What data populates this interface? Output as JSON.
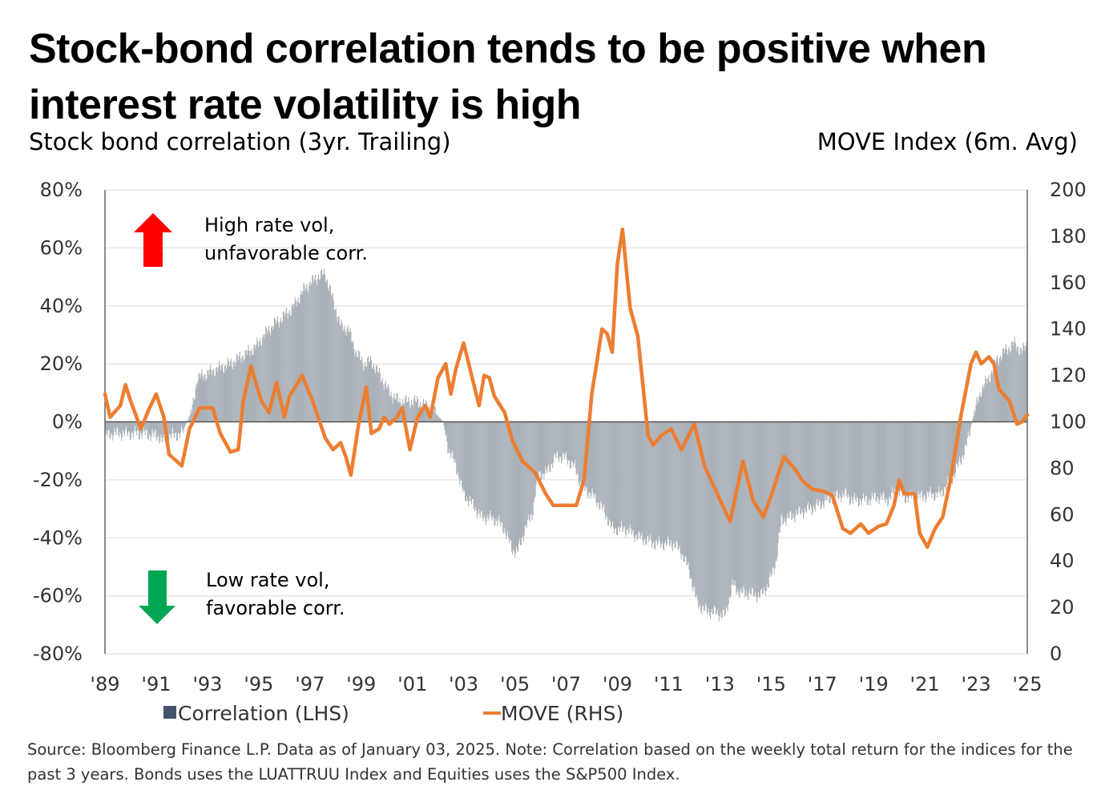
{
  "title_line1": "Stock-bond correlation tends to be positive when",
  "title_line2": "interest rate volatility is high",
  "subtitle_left": "Stock bond correlation (3yr. Trailing)",
  "subtitle_right": "MOVE Index (6m. Avg)",
  "annotations": {
    "high_line1": "High rate vol,",
    "high_line2": "unfavorable corr.",
    "low_line1": "Low rate vol,",
    "low_line2": "favorable corr.",
    "up_arrow_icon": "up-arrow",
    "down_arrow_icon": "down-arrow",
    "up_color": "#ff0000",
    "down_color": "#00a651"
  },
  "source": "Source: Bloomberg Finance L.P. Data as of January 03, 2025. Note: Correlation based on the weekly total return for the indices for the past 3 years. Bonds uses the LUATTRUU Index and Equities uses the S&P500 Index.",
  "chart_data": {
    "type": "bar+line",
    "title": "Stock-bond correlation tends to be positive when interest rate volatility is high",
    "xlabel": "",
    "ylabel_left": "Stock bond correlation (3yr. Trailing)",
    "ylabel_right": "MOVE Index (6m. Avg)",
    "xlim": [
      1989,
      2025
    ],
    "ylim_left": [
      -80,
      80
    ],
    "ylim_right": [
      0,
      200
    ],
    "grid": true,
    "legend_position": "bottom",
    "x_ticks": [
      "'89",
      "'91",
      "'93",
      "'95",
      "'97",
      "'99",
      "'01",
      "'03",
      "'05",
      "'07",
      "'09",
      "'11",
      "'13",
      "'15",
      "'17",
      "'19",
      "'21",
      "'23",
      "'25"
    ],
    "y_ticks_left": [
      "80%",
      "60%",
      "40%",
      "20%",
      "0%",
      "-20%",
      "-40%",
      "-60%",
      "-80%"
    ],
    "y_ticks_right": [
      "200",
      "180",
      "160",
      "140",
      "120",
      "100",
      "80",
      "60",
      "40",
      "20",
      "0"
    ],
    "series": [
      {
        "name": "Correlation (LHS)",
        "type": "bar",
        "axis": "left",
        "color": "#44546a",
        "bar_color": "#a9b1b8",
        "unit": "%",
        "points": [
          [
            1989.0,
            -5
          ],
          [
            1989.3,
            -4
          ],
          [
            1989.9,
            -4
          ],
          [
            1990.5,
            -4
          ],
          [
            1991.1,
            -5
          ],
          [
            1991.3,
            -7
          ],
          [
            1991.5,
            -5
          ],
          [
            1992.0,
            -4
          ],
          [
            1992.4,
            4
          ],
          [
            1992.6,
            15
          ],
          [
            1993.3,
            18
          ],
          [
            1993.9,
            20
          ],
          [
            1994.6,
            24
          ],
          [
            1994.9,
            26
          ],
          [
            1995.4,
            32
          ],
          [
            1995.8,
            35
          ],
          [
            1996.3,
            39
          ],
          [
            1996.8,
            46
          ],
          [
            1997.3,
            50
          ],
          [
            1997.6,
            51
          ],
          [
            1997.9,
            42
          ],
          [
            1998.2,
            33
          ],
          [
            1998.5,
            32
          ],
          [
            1998.8,
            24
          ],
          [
            1999.1,
            20
          ],
          [
            1999.4,
            21
          ],
          [
            1999.8,
            15
          ],
          [
            2000.1,
            10
          ],
          [
            2000.5,
            7
          ],
          [
            2001.2,
            7
          ],
          [
            2001.8,
            4
          ],
          [
            2002.0,
            2
          ],
          [
            2002.2,
            0
          ],
          [
            2002.4,
            -9
          ],
          [
            2002.7,
            -15
          ],
          [
            2003.0,
            -25
          ],
          [
            2003.4,
            -29
          ],
          [
            2003.7,
            -33
          ],
          [
            2004.0,
            -33
          ],
          [
            2004.3,
            -34
          ],
          [
            2004.6,
            -37
          ],
          [
            2004.9,
            -44
          ],
          [
            2005.1,
            -45
          ],
          [
            2005.4,
            -37
          ],
          [
            2005.7,
            -31
          ],
          [
            2005.9,
            -18
          ],
          [
            2006.2,
            -18
          ],
          [
            2006.6,
            -12
          ],
          [
            2006.9,
            -12
          ],
          [
            2007.3,
            -15
          ],
          [
            2007.6,
            -22
          ],
          [
            2008.1,
            -26
          ],
          [
            2008.5,
            -31
          ],
          [
            2008.8,
            -37
          ],
          [
            2009.3,
            -37
          ],
          [
            2009.9,
            -40
          ],
          [
            2010.5,
            -42
          ],
          [
            2011.2,
            -42
          ],
          [
            2011.5,
            -45
          ],
          [
            2011.8,
            -51
          ],
          [
            2012.1,
            -62
          ],
          [
            2012.4,
            -65
          ],
          [
            2012.9,
            -66
          ],
          [
            2013.2,
            -67
          ],
          [
            2013.5,
            -56
          ],
          [
            2013.8,
            -59
          ],
          [
            2014.1,
            -59
          ],
          [
            2014.6,
            -60
          ],
          [
            2014.9,
            -56
          ],
          [
            2015.2,
            -48
          ],
          [
            2015.4,
            -34
          ],
          [
            2015.7,
            -33
          ],
          [
            2016.2,
            -31
          ],
          [
            2016.8,
            -29
          ],
          [
            2017.4,
            -26
          ],
          [
            2017.9,
            -25
          ],
          [
            2018.2,
            -27
          ],
          [
            2018.7,
            -27
          ],
          [
            2019.2,
            -26
          ],
          [
            2019.6,
            -27
          ],
          [
            2019.9,
            -23
          ],
          [
            2020.2,
            -26
          ],
          [
            2020.7,
            -26
          ],
          [
            2021.2,
            -25
          ],
          [
            2021.6,
            -25
          ],
          [
            2022.1,
            -19
          ],
          [
            2022.6,
            -9
          ],
          [
            2022.9,
            2
          ],
          [
            2023.2,
            11
          ],
          [
            2023.5,
            15
          ],
          [
            2023.8,
            21
          ],
          [
            2024.2,
            25
          ],
          [
            2024.5,
            27
          ],
          [
            2024.8,
            24
          ],
          [
            2025.0,
            27
          ]
        ]
      },
      {
        "name": "MOVE (RHS)",
        "type": "line",
        "axis": "right",
        "color": "#ed7d31",
        "points": [
          [
            1989.0,
            112
          ],
          [
            1989.2,
            102
          ],
          [
            1989.6,
            107
          ],
          [
            1989.8,
            116
          ],
          [
            1990.0,
            109
          ],
          [
            1990.4,
            97
          ],
          [
            1990.7,
            105
          ],
          [
            1991.0,
            112
          ],
          [
            1991.3,
            102
          ],
          [
            1991.5,
            86
          ],
          [
            1992.0,
            81
          ],
          [
            1992.3,
            97
          ],
          [
            1992.7,
            106
          ],
          [
            1993.2,
            106
          ],
          [
            1993.5,
            95
          ],
          [
            1993.9,
            87
          ],
          [
            1994.2,
            88
          ],
          [
            1994.4,
            109
          ],
          [
            1994.7,
            124
          ],
          [
            1995.1,
            109
          ],
          [
            1995.4,
            104
          ],
          [
            1995.7,
            117
          ],
          [
            1996.0,
            102
          ],
          [
            1996.2,
            111
          ],
          [
            1996.7,
            120
          ],
          [
            1997.1,
            109
          ],
          [
            1997.6,
            93
          ],
          [
            1997.9,
            88
          ],
          [
            1998.2,
            91
          ],
          [
            1998.4,
            85
          ],
          [
            1998.6,
            77
          ],
          [
            1998.9,
            99
          ],
          [
            1999.2,
            115
          ],
          [
            1999.4,
            95
          ],
          [
            1999.7,
            97
          ],
          [
            1999.9,
            102
          ],
          [
            2000.1,
            99
          ],
          [
            2000.4,
            102
          ],
          [
            2000.6,
            106
          ],
          [
            2000.9,
            88
          ],
          [
            2001.2,
            102
          ],
          [
            2001.5,
            107
          ],
          [
            2001.7,
            102
          ],
          [
            2002.0,
            119
          ],
          [
            2002.3,
            125
          ],
          [
            2002.5,
            112
          ],
          [
            2002.7,
            123
          ],
          [
            2003.0,
            134
          ],
          [
            2003.4,
            116
          ],
          [
            2003.6,
            107
          ],
          [
            2003.8,
            120
          ],
          [
            2004.0,
            119
          ],
          [
            2004.2,
            111
          ],
          [
            2004.6,
            104
          ],
          [
            2004.9,
            92
          ],
          [
            2005.3,
            83
          ],
          [
            2005.8,
            78
          ],
          [
            2006.2,
            69
          ],
          [
            2006.5,
            64
          ],
          [
            2007.0,
            64
          ],
          [
            2007.4,
            64
          ],
          [
            2007.7,
            75
          ],
          [
            2008.0,
            112
          ],
          [
            2008.4,
            140
          ],
          [
            2008.6,
            138
          ],
          [
            2008.8,
            130
          ],
          [
            2009.0,
            168
          ],
          [
            2009.2,
            183
          ],
          [
            2009.5,
            149
          ],
          [
            2009.8,
            137
          ],
          [
            2010.2,
            94
          ],
          [
            2010.4,
            90
          ],
          [
            2010.7,
            94
          ],
          [
            2011.1,
            97
          ],
          [
            2011.5,
            88
          ],
          [
            2012.0,
            99
          ],
          [
            2012.4,
            81
          ],
          [
            2012.9,
            69
          ],
          [
            2013.4,
            57
          ],
          [
            2013.9,
            83
          ],
          [
            2014.3,
            66
          ],
          [
            2014.7,
            59
          ],
          [
            2015.0,
            68
          ],
          [
            2015.5,
            85
          ],
          [
            2015.9,
            80
          ],
          [
            2016.2,
            75
          ],
          [
            2016.6,
            71
          ],
          [
            2017.1,
            70
          ],
          [
            2017.4,
            68
          ],
          [
            2017.8,
            54
          ],
          [
            2018.1,
            52
          ],
          [
            2018.5,
            56
          ],
          [
            2018.8,
            52
          ],
          [
            2019.2,
            55
          ],
          [
            2019.5,
            56
          ],
          [
            2019.8,
            64
          ],
          [
            2020.0,
            75
          ],
          [
            2020.2,
            69
          ],
          [
            2020.6,
            69
          ],
          [
            2020.8,
            52
          ],
          [
            2021.1,
            46
          ],
          [
            2021.4,
            54
          ],
          [
            2021.7,
            59
          ],
          [
            2022.0,
            75
          ],
          [
            2022.2,
            88
          ],
          [
            2022.4,
            102
          ],
          [
            2022.8,
            125
          ],
          [
            2023.0,
            130
          ],
          [
            2023.2,
            125
          ],
          [
            2023.5,
            128
          ],
          [
            2023.7,
            125
          ],
          [
            2023.9,
            114
          ],
          [
            2024.3,
            109
          ],
          [
            2024.6,
            99
          ],
          [
            2024.8,
            100
          ],
          [
            2025.0,
            103
          ]
        ]
      }
    ]
  }
}
